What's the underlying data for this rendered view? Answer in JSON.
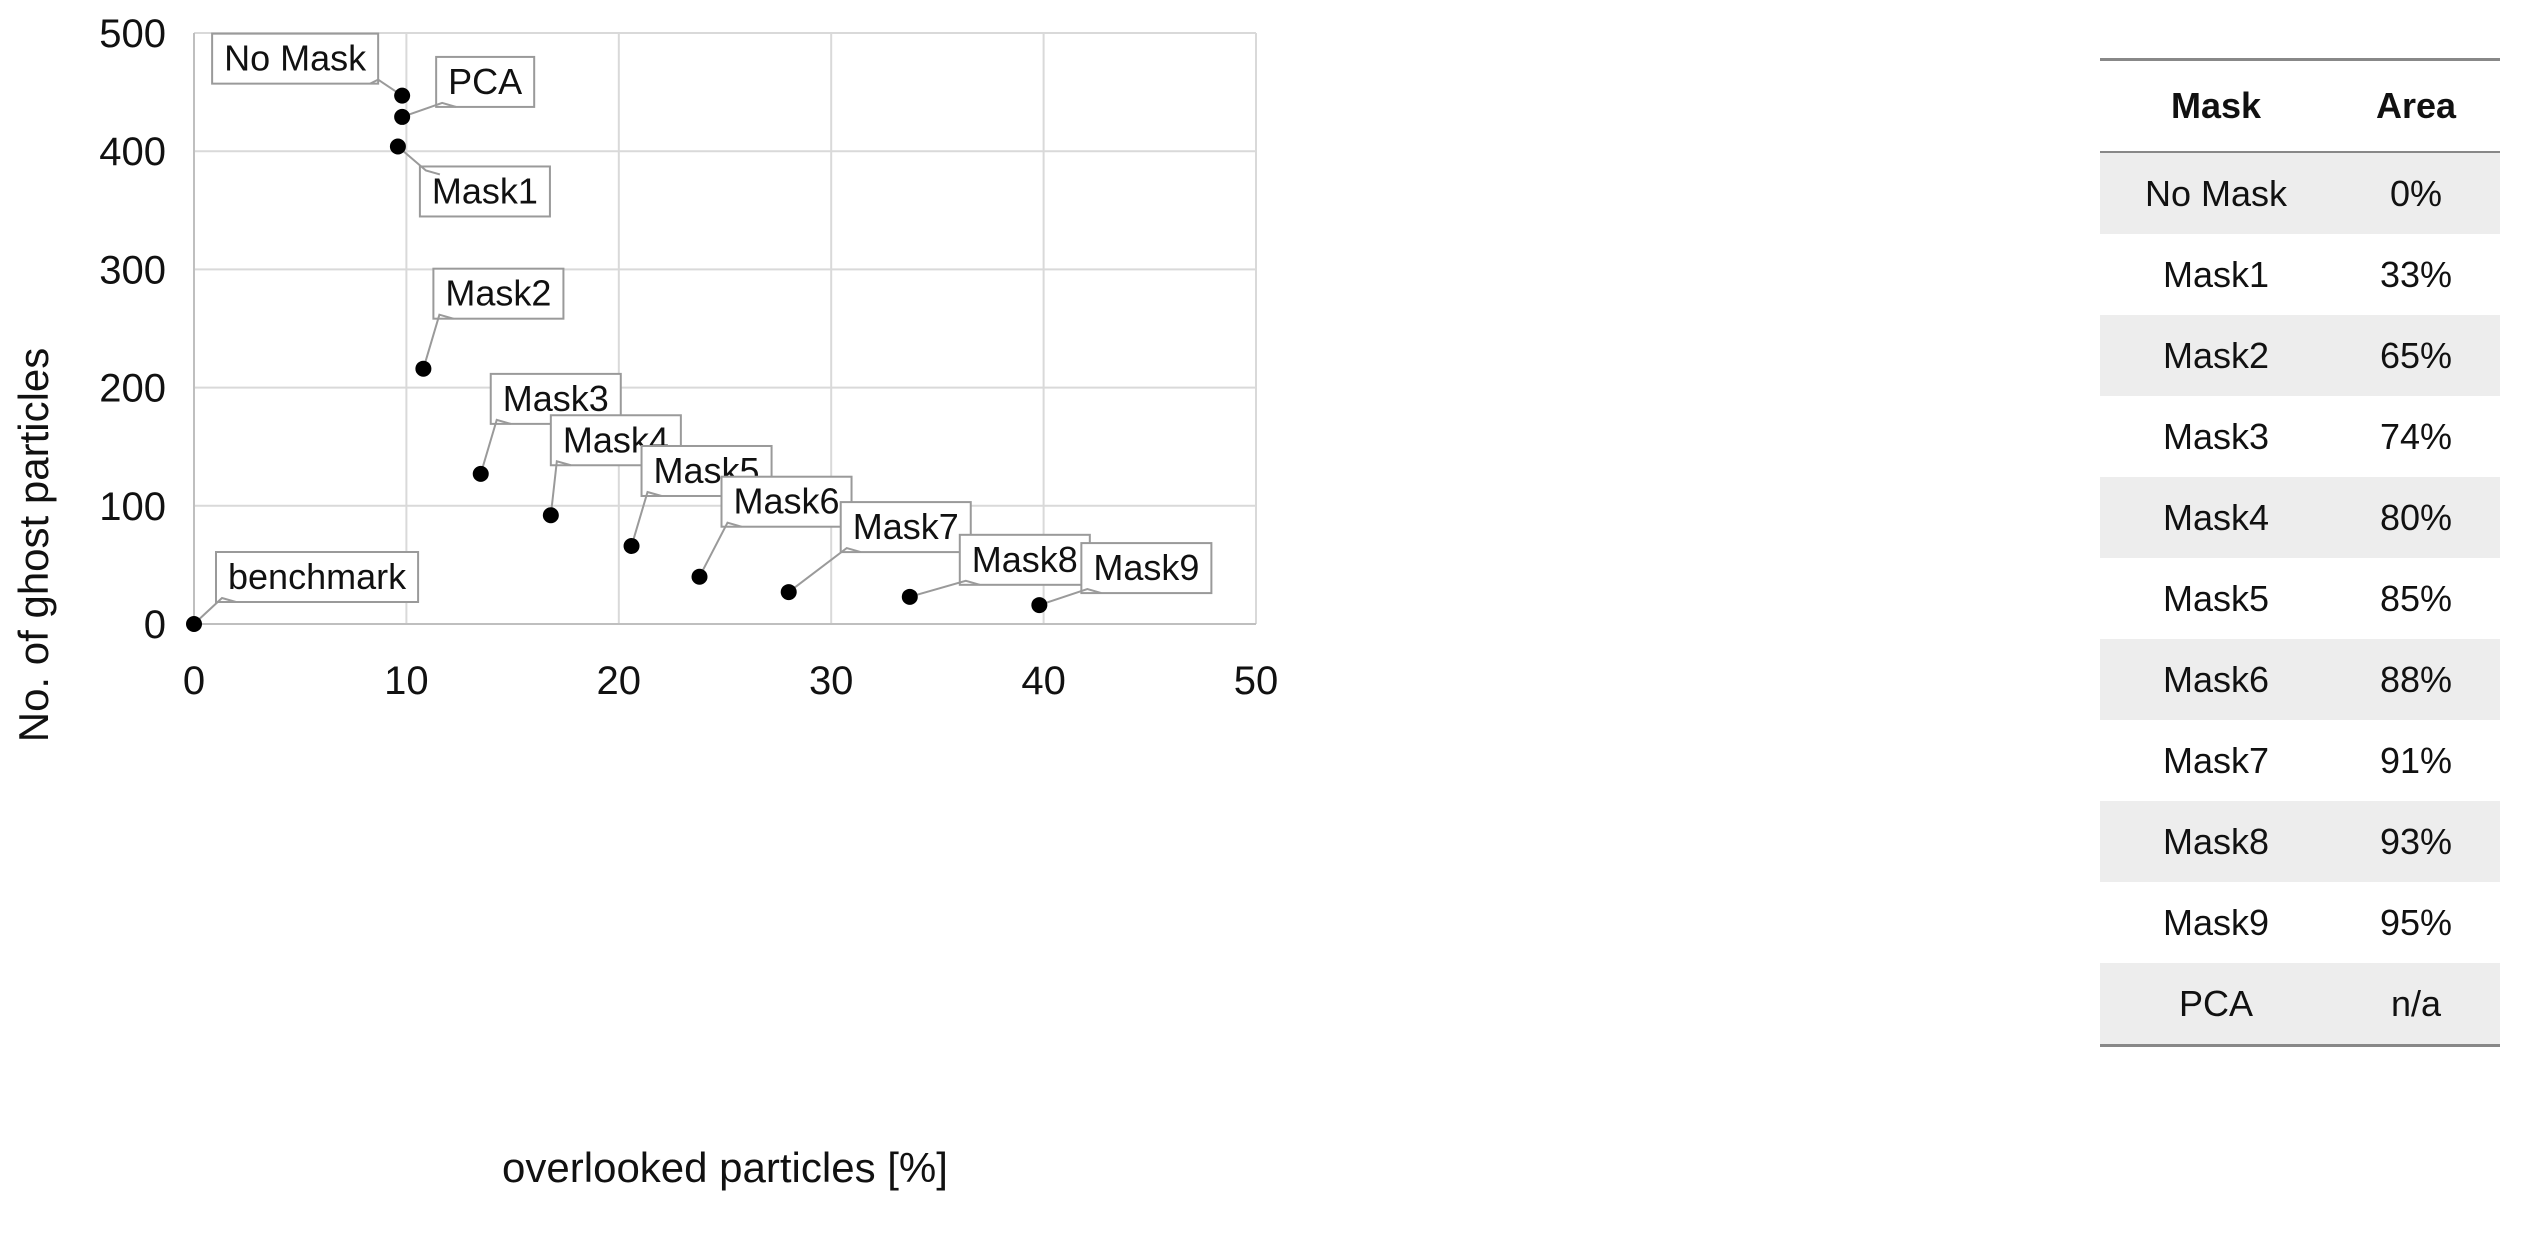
{
  "chart_data": {
    "type": "scatter",
    "xlabel": "overlooked particles [%]",
    "ylabel": "No. of ghost particles",
    "xlim": [
      0,
      50
    ],
    "ylim": [
      0,
      500
    ],
    "xticks": [
      0,
      10,
      20,
      30,
      40,
      50
    ],
    "yticks": [
      0,
      100,
      200,
      300,
      400,
      500
    ],
    "grid": true,
    "points": [
      {
        "label": "benchmark",
        "x": 0.0,
        "y": 0
      },
      {
        "label": "No Mask",
        "x": 9.8,
        "y": 447
      },
      {
        "label": "PCA",
        "x": 9.8,
        "y": 429
      },
      {
        "label": "Mask1",
        "x": 9.6,
        "y": 404
      },
      {
        "label": "Mask2",
        "x": 10.8,
        "y": 216
      },
      {
        "label": "Mask3",
        "x": 13.5,
        "y": 127
      },
      {
        "label": "Mask4",
        "x": 16.8,
        "y": 92
      },
      {
        "label": "Mask5",
        "x": 20.6,
        "y": 66
      },
      {
        "label": "Mask6",
        "x": 23.8,
        "y": 40
      },
      {
        "label": "Mask7",
        "x": 28.0,
        "y": 27
      },
      {
        "label": "Mask8",
        "x": 33.7,
        "y": 23
      },
      {
        "label": "Mask9",
        "x": 39.8,
        "y": 16
      }
    ]
  },
  "table": {
    "headers": [
      "Mask",
      "Area"
    ],
    "rows": [
      [
        "No Mask",
        "0%"
      ],
      [
        "Mask1",
        "33%"
      ],
      [
        "Mask2",
        "65%"
      ],
      [
        "Mask3",
        "74%"
      ],
      [
        "Mask4",
        "80%"
      ],
      [
        "Mask5",
        "85%"
      ],
      [
        "Mask6",
        "88%"
      ],
      [
        "Mask7",
        "91%"
      ],
      [
        "Mask8",
        "93%"
      ],
      [
        "Mask9",
        "95%"
      ],
      [
        "PCA",
        "n/a"
      ]
    ]
  }
}
